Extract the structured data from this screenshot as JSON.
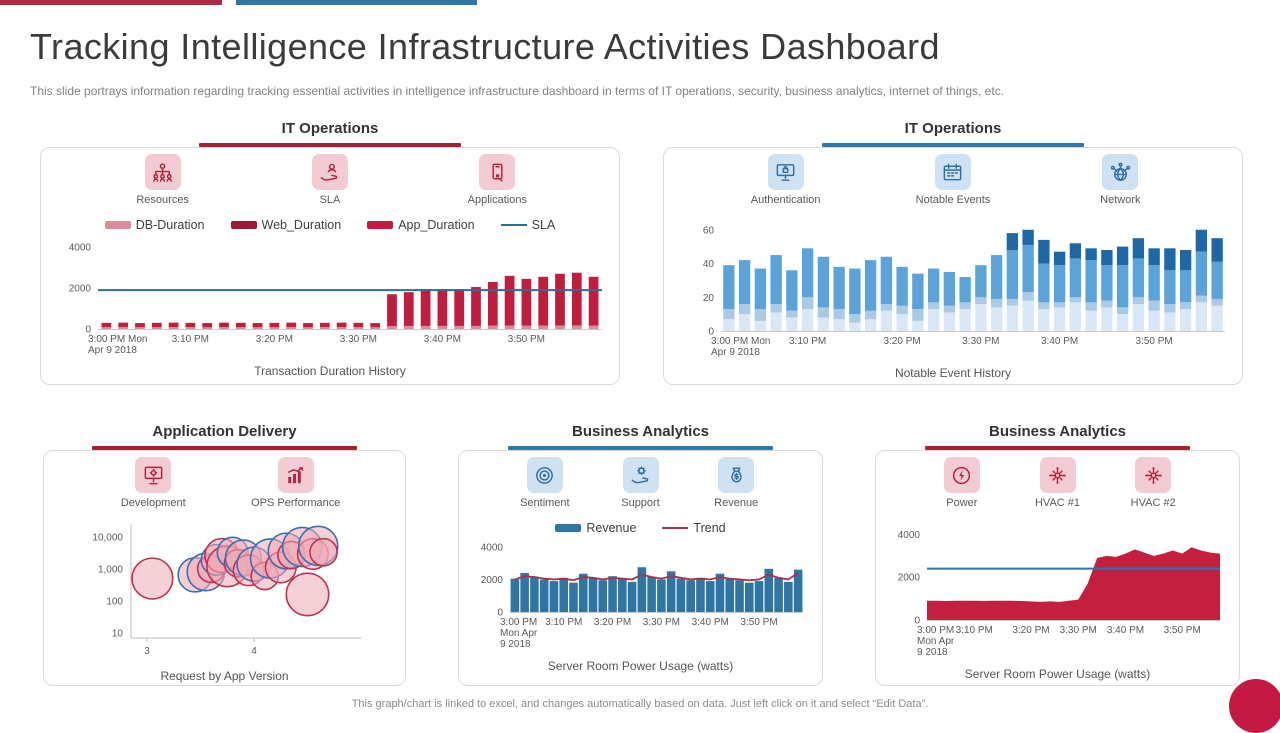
{
  "colors": {
    "top_red": "#ad2c3f",
    "top_blue": "#2f76a4",
    "dot": "#c41944"
  },
  "header": {
    "title": "Tracking Intelligence Infrastructure Activities Dashboard",
    "subtitle": "This slide portrays information regarding tracking essential activities in intelligence infrastructure dashboard in terms of IT operations, security, business analytics, internet of things, etc."
  },
  "footer": {
    "note": "This graph/chart is linked to excel, and changes automatically based on data. Just left click on it and select “Edit Data”."
  },
  "panels": [
    {
      "title": "IT Operations",
      "accent": "#a91e33",
      "theme": "red",
      "icons": [
        {
          "name": "resources",
          "label": "Resources"
        },
        {
          "name": "sla",
          "label": "SLA"
        },
        {
          "name": "applications",
          "label": "Applications"
        }
      ],
      "legend": [
        {
          "label": "DB-Duration",
          "color": "#dc8b99",
          "shape": "swatch"
        },
        {
          "label": "Web_Duration",
          "color": "#9c1b31",
          "shape": "swatch"
        },
        {
          "label": "App_Duration",
          "color": "#bf1e3e",
          "shape": "swatch"
        },
        {
          "label": "SLA",
          "color": "#2e6e8e",
          "shape": "line"
        }
      ],
      "caption": "Transaction Duration History"
    },
    {
      "title": "IT Operations",
      "accent": "#2d7aa9",
      "theme": "blue",
      "icons": [
        {
          "name": "authentication",
          "label": "Authentication"
        },
        {
          "name": "notable-events",
          "label": "Notable Events"
        },
        {
          "name": "network",
          "label": "Network"
        }
      ],
      "legend": [],
      "caption": "Notable Event History"
    },
    {
      "title": "Application Delivery",
      "accent": "#a91e33",
      "theme": "red",
      "icons": [
        {
          "name": "development",
          "label": "Development"
        },
        {
          "name": "ops-performance",
          "label": "OPS Performance"
        }
      ],
      "legend": [],
      "caption": "Request by App Version"
    },
    {
      "title": "Business Analytics",
      "accent": "#2d7aa9",
      "theme": "blue",
      "icons": [
        {
          "name": "sentiment",
          "label": "Sentiment"
        },
        {
          "name": "support",
          "label": "Support"
        },
        {
          "name": "revenue",
          "label": "Revenue"
        }
      ],
      "legend": [
        {
          "label": "Revenue",
          "color": "#2f76a4",
          "shape": "swatch"
        },
        {
          "label": "Trend",
          "color": "#a8324a",
          "shape": "line"
        }
      ],
      "caption": "Server Room Power Usage (watts)"
    },
    {
      "title": "Business Analytics",
      "accent": "#a91e33",
      "theme": "red",
      "icons": [
        {
          "name": "power",
          "label": "Power"
        },
        {
          "name": "hvac1",
          "label": "HVAC #1"
        },
        {
          "name": "hvac2",
          "label": "HVAC #2"
        }
      ],
      "legend": [],
      "caption": "Server Room Power Usage (watts)"
    }
  ],
  "chart_data": [
    {
      "type": "bar",
      "subtype": "bar+line",
      "title": "Transaction Duration History",
      "ticks": {
        "labels": [
          "3:00 PM Mon\nApr 9 2018",
          "3:10 PM",
          "3:20 PM",
          "3:30 PM",
          "3:40 PM",
          "3:50 PM"
        ],
        "bar_index": [
          0,
          5,
          10,
          15,
          20,
          25
        ]
      },
      "ylim": [
        0,
        4300
      ],
      "yticks": [
        0,
        2000,
        4000
      ],
      "bar_colors": {
        "db": "#dc8b99",
        "main": "#bf1e3e"
      },
      "db_values": [
        90,
        95,
        85,
        90,
        95,
        90,
        85,
        95,
        90,
        85,
        90,
        95,
        85,
        90,
        95,
        90,
        85,
        140,
        150,
        150,
        150,
        150,
        150,
        160,
        170,
        160,
        165,
        170,
        175,
        165
      ],
      "total_values": [
        300,
        310,
        290,
        300,
        310,
        300,
        290,
        310,
        300,
        290,
        300,
        310,
        290,
        300,
        310,
        300,
        290,
        1700,
        1800,
        1950,
        1950,
        1950,
        2050,
        2300,
        2600,
        2450,
        2550,
        2700,
        2750,
        2550
      ],
      "sla_value": 1900,
      "sla_color": "#2e6e8e"
    },
    {
      "type": "bar",
      "subtype": "stacked-bar",
      "title": "Notable Event History",
      "ticks": {
        "labels": [
          "3:00 PM Mon\nApr 9 2018",
          "3:10 PM",
          "3:20 PM",
          "3:30 PM",
          "3:40 PM",
          "3:50 PM"
        ],
        "bar_index": [
          0,
          5,
          11,
          16,
          21,
          27
        ]
      },
      "ylim": [
        0,
        64
      ],
      "yticks": [
        0,
        20,
        40,
        60
      ],
      "segment_colors": [
        "#d9e8f6",
        "#a9cbe8",
        "#5ba3d9",
        "#1f68a5"
      ],
      "s1": [
        7,
        10,
        6,
        11,
        8,
        13,
        8,
        7,
        5,
        7,
        12,
        10,
        6,
        13,
        11,
        13,
        16,
        14,
        15,
        18,
        13,
        14,
        17,
        12,
        14,
        10,
        16,
        12,
        11,
        13,
        17,
        15
      ],
      "s2": [
        6,
        6,
        7,
        5,
        4,
        7,
        6,
        6,
        5,
        5,
        4,
        5,
        7,
        4,
        4,
        4,
        4,
        5,
        4,
        5,
        4,
        3,
        3,
        5,
        4,
        4,
        4,
        6,
        5,
        4,
        4,
        4
      ],
      "s4": [
        0,
        0,
        0,
        0,
        0,
        0,
        0,
        0,
        0,
        0,
        0,
        0,
        0,
        0,
        0,
        0,
        0,
        0,
        10,
        9,
        14,
        8,
        9,
        7,
        9,
        11,
        12,
        10,
        13,
        12,
        13,
        14
      ],
      "totals": [
        39,
        42,
        37,
        45,
        36,
        49,
        44,
        38,
        37,
        42,
        44,
        38,
        34,
        37,
        35,
        32,
        39,
        45,
        58,
        60,
        54,
        47,
        52,
        49,
        48,
        50,
        55,
        49,
        49,
        48,
        60,
        55
      ]
    },
    {
      "type": "bubble",
      "title": "Request by App Version",
      "x_ticks": [
        3,
        4
      ],
      "xlim": [
        2.85,
        5.0
      ],
      "y_ticks": [
        10,
        100,
        1000,
        10000
      ],
      "y_tick_labels": [
        "10",
        "100",
        "1,000",
        "10,000"
      ],
      "y_scale": "log",
      "ylim": [
        7,
        25000
      ],
      "fill": "rgba(238,170,182,0.55)",
      "outline_colors": {
        "red": "#c0314f",
        "blue": "#3a6fb0"
      },
      "points": [
        {
          "x": 3.05,
          "y": 500,
          "r": 24,
          "c": "red"
        },
        {
          "x": 3.45,
          "y": 650,
          "r": 20,
          "c": "blue"
        },
        {
          "x": 3.55,
          "y": 800,
          "r": 22,
          "c": "blue"
        },
        {
          "x": 3.6,
          "y": 1000,
          "r": 16,
          "c": "red"
        },
        {
          "x": 3.65,
          "y": 1900,
          "r": 18,
          "c": "blue"
        },
        {
          "x": 3.7,
          "y": 2600,
          "r": 20,
          "c": "red"
        },
        {
          "x": 3.75,
          "y": 1200,
          "r": 24,
          "c": "red"
        },
        {
          "x": 3.8,
          "y": 3200,
          "r": 18,
          "c": "blue"
        },
        {
          "x": 3.85,
          "y": 1500,
          "r": 16,
          "c": "red"
        },
        {
          "x": 3.9,
          "y": 2200,
          "r": 21,
          "c": "blue"
        },
        {
          "x": 3.95,
          "y": 900,
          "r": 18,
          "c": "red"
        },
        {
          "x": 4.0,
          "y": 1400,
          "r": 20,
          "c": "blue"
        },
        {
          "x": 4.1,
          "y": 600,
          "r": 16,
          "c": "red"
        },
        {
          "x": 4.15,
          "y": 2100,
          "r": 23,
          "c": "blue"
        },
        {
          "x": 4.25,
          "y": 1100,
          "r": 18,
          "c": "red"
        },
        {
          "x": 4.3,
          "y": 3600,
          "r": 21,
          "c": "blue"
        },
        {
          "x": 4.35,
          "y": 2700,
          "r": 16,
          "c": "red"
        },
        {
          "x": 4.45,
          "y": 4800,
          "r": 23,
          "c": "blue"
        },
        {
          "x": 4.5,
          "y": 160,
          "r": 25,
          "c": "red"
        },
        {
          "x": 4.55,
          "y": 2900,
          "r": 18,
          "c": "red"
        },
        {
          "x": 4.6,
          "y": 5200,
          "r": 23,
          "c": "blue"
        },
        {
          "x": 4.65,
          "y": 3300,
          "r": 16,
          "c": "red"
        }
      ]
    },
    {
      "type": "bar",
      "subtype": "bar+trend",
      "title": "Server Room Power Usage (watts)",
      "ticks": {
        "labels": [
          "3:00 PM\nMon Apr\n9 2018",
          "3:10 PM",
          "3:20 PM",
          "3:30 PM",
          "3:40 PM",
          "3:50 PM"
        ],
        "bar_index": [
          0,
          5,
          10,
          15,
          20,
          25
        ]
      },
      "ylim": [
        0,
        4300
      ],
      "yticks": [
        0,
        2000,
        4000
      ],
      "bar_color": "#2f76a4",
      "trend_color": "#a8324a",
      "values": [
        2050,
        2400,
        2150,
        2000,
        1900,
        2100,
        1800,
        2350,
        2100,
        1950,
        2200,
        2050,
        1850,
        2750,
        2150,
        2000,
        2500,
        2050,
        1950,
        2100,
        1900,
        2350,
        2050,
        1950,
        1800,
        1900,
        2650,
        2100,
        1850,
        2600
      ],
      "trend": [
        2000,
        2200,
        2150,
        2050,
        2000,
        2050,
        1950,
        2150,
        2100,
        2000,
        2100,
        2050,
        2000,
        2300,
        2150,
        2050,
        2200,
        2100,
        2000,
        2050,
        2000,
        2150,
        2050,
        2000,
        1950,
        2000,
        2300,
        2100,
        2000,
        2400
      ]
    },
    {
      "type": "area",
      "subtype": "area+line",
      "title": "Server Room Power Usage (watts)",
      "ticks": {
        "labels": [
          "3:00 PM\nMon Apr\n9 2018",
          "3:10 PM",
          "3:20 PM",
          "3:30 PM",
          "3:40 PM",
          "3:50 PM"
        ],
        "point_index": [
          0,
          5,
          11,
          16,
          21,
          27
        ]
      },
      "ylim": [
        0,
        4300
      ],
      "yticks": [
        0,
        2000,
        4000
      ],
      "area_color": "#c41f3e",
      "line_color": "#2e75a8",
      "values": [
        900,
        900,
        890,
        900,
        900,
        900,
        895,
        900,
        900,
        900,
        890,
        870,
        850,
        870,
        850,
        900,
        950,
        1700,
        2900,
        3000,
        2950,
        3100,
        3300,
        3150,
        3000,
        3100,
        3250,
        3100,
        3400,
        3250,
        3150,
        3100
      ],
      "threshold": 2400
    }
  ]
}
